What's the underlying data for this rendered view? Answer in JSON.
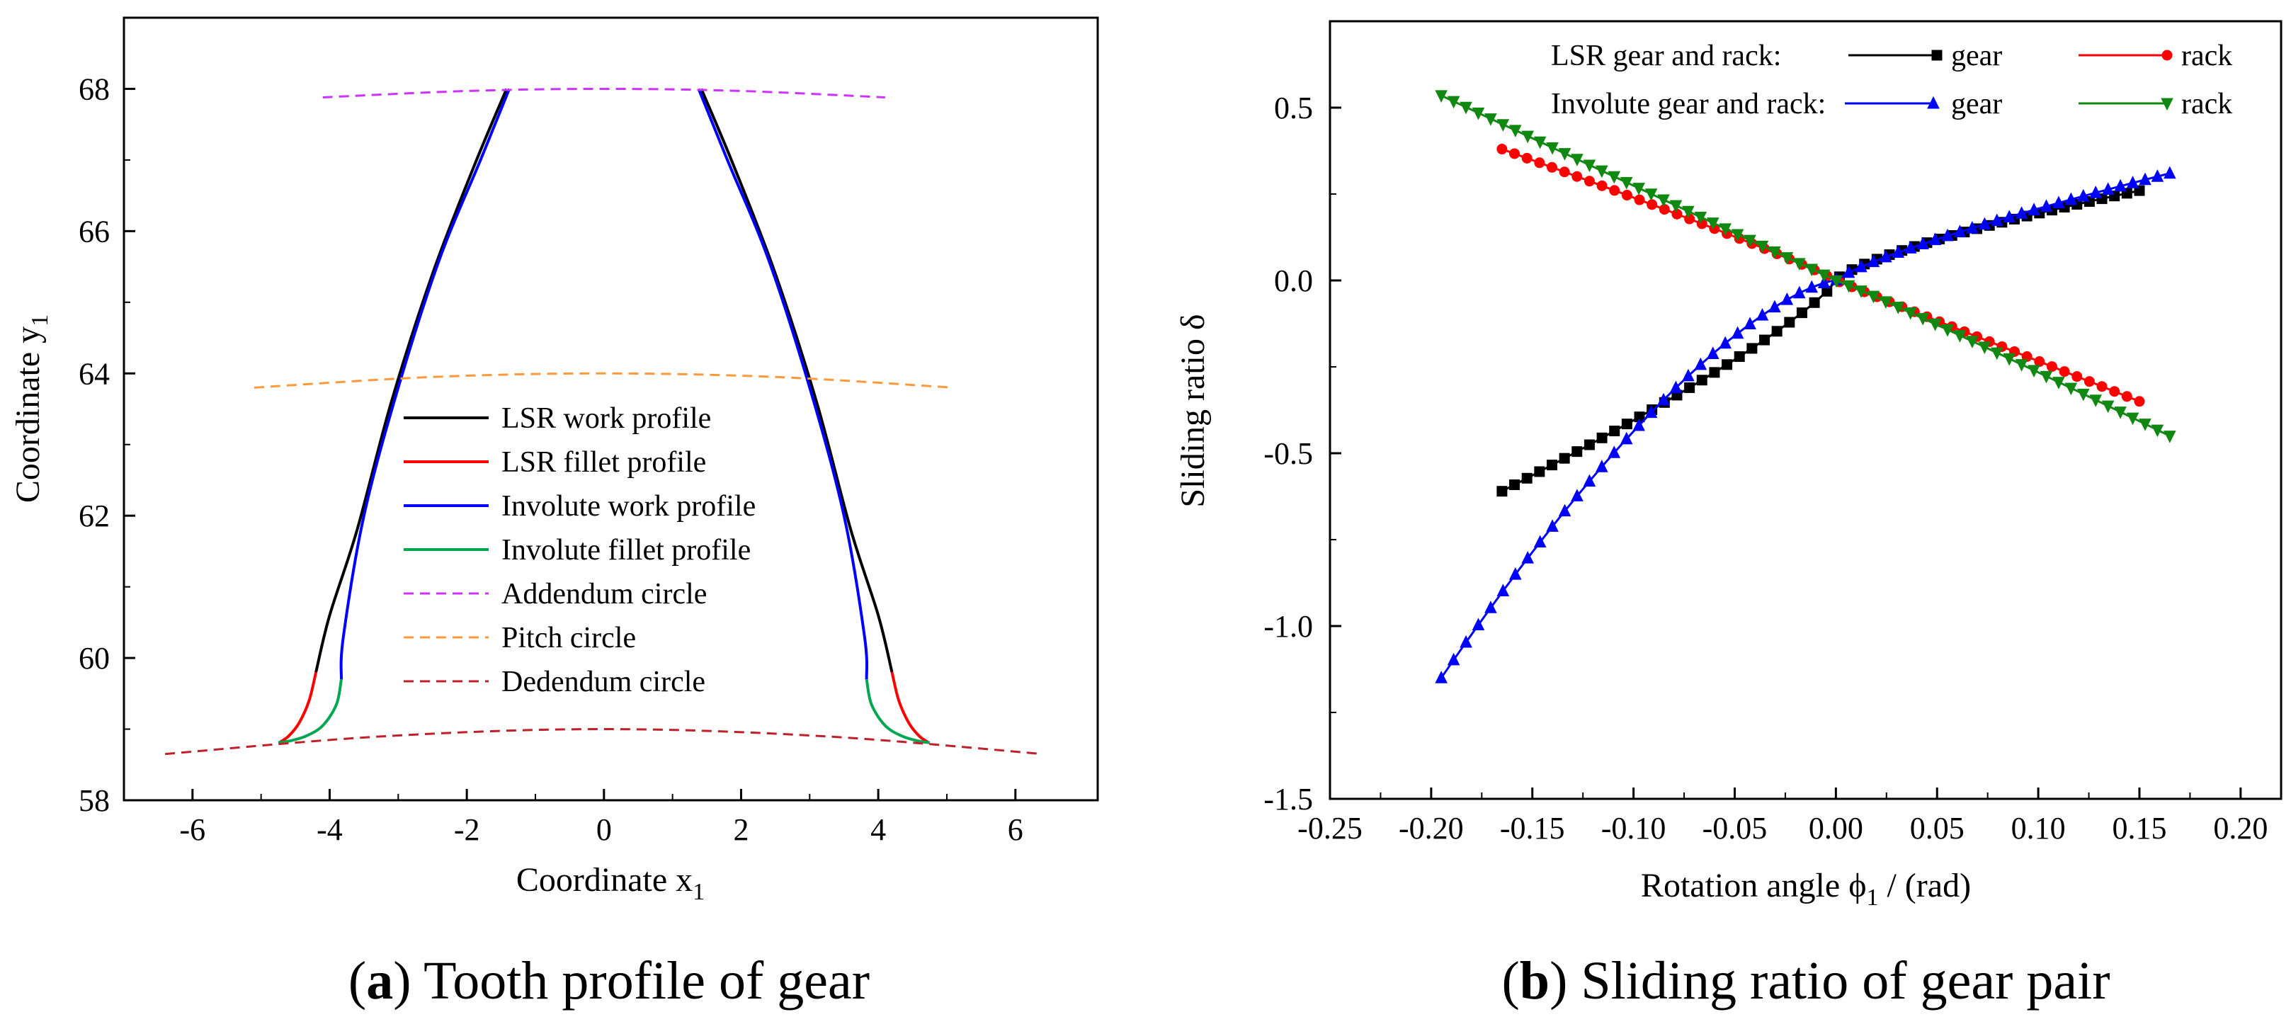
{
  "panels": [
    {
      "caption": {
        "letter": "a",
        "text": "Tooth profile of gear"
      }
    },
    {
      "caption": {
        "letter": "b",
        "text": "Sliding ratio of gear pair"
      }
    }
  ],
  "chart_data": [
    {
      "type": "line",
      "title": "",
      "xlabel": "Coordinate x",
      "xlabel_sub": "1",
      "ylabel": "Coordinate y",
      "ylabel_sub": "1",
      "xlim": [
        -7,
        7.2
      ],
      "ylim": [
        58,
        69
      ],
      "xticks": [
        -6,
        -4,
        -2,
        0,
        2,
        4,
        6
      ],
      "yticks": [
        58,
        60,
        62,
        64,
        66,
        68
      ],
      "legend": {
        "placement": "center",
        "entries": [
          {
            "name": "LSR work profile",
            "color": "#000000",
            "dash": false
          },
          {
            "name": "LSR fillet profile",
            "color": "#ff0000",
            "dash": false
          },
          {
            "name": "Involute work profile",
            "color": "#0000ff",
            "dash": false
          },
          {
            "name": "Involute fillet profile",
            "color": "#00a650",
            "dash": false
          },
          {
            "name": "Addendum circle",
            "color": "#cc33ff",
            "dash": true
          },
          {
            "name": "Pitch circle",
            "color": "#ff9a3c",
            "dash": true
          },
          {
            "name": "Dedendum circle",
            "color": "#c0202a",
            "dash": true
          }
        ]
      },
      "series": [
        {
          "name": "LSR work profile",
          "color": "#000000",
          "x": [
            -1.42,
            -1.9,
            -2.5,
            -3.1,
            -3.6,
            -4.0,
            -4.2
          ],
          "y": [
            68,
            66.9,
            65.4,
            63.6,
            61.8,
            60.6,
            59.8
          ]
        },
        {
          "name": "LSR work profile (right)",
          "color": "#000000",
          "x": [
            1.42,
            1.9,
            2.5,
            3.1,
            3.6,
            4.0,
            4.2
          ],
          "y": [
            68,
            66.9,
            65.4,
            63.6,
            61.8,
            60.6,
            59.8
          ]
        },
        {
          "name": "LSR fillet profile",
          "color": "#ff0000",
          "x": [
            -4.2,
            -4.3,
            -4.45,
            -4.6,
            -4.72
          ],
          "y": [
            59.8,
            59.4,
            59.08,
            58.9,
            58.82
          ]
        },
        {
          "name": "LSR fillet profile (right)",
          "color": "#ff0000",
          "x": [
            4.2,
            4.3,
            4.45,
            4.6,
            4.72
          ],
          "y": [
            59.8,
            59.4,
            59.08,
            58.9,
            58.82
          ]
        },
        {
          "name": "Involute work profile",
          "color": "#0000ff",
          "x": [
            -1.38,
            -1.8,
            -2.4,
            -3.0,
            -3.5,
            -3.8,
            -3.83
          ],
          "y": [
            68,
            67.0,
            65.6,
            63.8,
            62.0,
            60.3,
            59.7
          ]
        },
        {
          "name": "Involute work profile (right)",
          "color": "#0000ff",
          "x": [
            1.38,
            1.8,
            2.4,
            3.0,
            3.5,
            3.8,
            3.83
          ],
          "y": [
            68,
            67.0,
            65.6,
            63.8,
            62.0,
            60.3,
            59.7
          ]
        },
        {
          "name": "Involute fillet profile",
          "color": "#00a650",
          "x": [
            -3.83,
            -3.9,
            -4.1,
            -4.35,
            -4.6,
            -4.75
          ],
          "y": [
            59.7,
            59.35,
            59.05,
            58.9,
            58.83,
            58.81
          ]
        },
        {
          "name": "Involute fillet profile (right)",
          "color": "#00a650",
          "x": [
            3.83,
            3.9,
            4.1,
            4.35,
            4.6,
            4.75
          ],
          "y": [
            59.7,
            59.35,
            59.05,
            58.9,
            58.83,
            58.81
          ]
        },
        {
          "name": "Addendum circle",
          "color": "#cc33ff",
          "dash": true,
          "x": [
            -4.1,
            -2,
            0,
            2,
            4.1
          ],
          "y": [
            67.88,
            67.97,
            68.0,
            67.97,
            67.88
          ]
        },
        {
          "name": "Pitch circle",
          "color": "#ff9a3c",
          "dash": true,
          "x": [
            -5.1,
            -2.5,
            0,
            2.5,
            5.1
          ],
          "y": [
            63.8,
            63.95,
            64.0,
            63.95,
            63.8
          ]
        },
        {
          "name": "Dedendum circle",
          "color": "#c0202a",
          "dash": true,
          "x": [
            -6.4,
            -3.2,
            0,
            3.2,
            6.4
          ],
          "y": [
            58.65,
            58.9,
            59.0,
            58.9,
            58.65
          ]
        }
      ]
    },
    {
      "type": "line",
      "title": "",
      "xlabel": "Rotation angle ϕ",
      "xlabel_sub": "1",
      "xlabel_suffix": " / (rad)",
      "ylabel": "Sliding ratio δ",
      "xlim": [
        -0.25,
        0.22
      ],
      "ylim": [
        -1.5,
        0.75
      ],
      "xticks": [
        -0.25,
        -0.2,
        -0.15,
        -0.1,
        -0.05,
        0.0,
        0.05,
        0.1,
        0.15,
        0.2
      ],
      "xtick_labels": [
        "-0.25",
        "-0.20",
        "-0.15",
        "-0.10",
        "-0.05",
        "0.00",
        "0.05",
        "0.10",
        "0.15",
        "0.20"
      ],
      "yticks": [
        -1.5,
        -1.0,
        -0.5,
        0.0,
        0.5
      ],
      "ytick_labels": [
        "-1.5",
        "-1.0",
        "-0.5",
        "0.0",
        "0.5"
      ],
      "legend": {
        "placement": "top",
        "groups": [
          {
            "label": "LSR gear and rack:",
            "entries": [
              {
                "name": "gear",
                "color": "#000000",
                "marker": "square"
              },
              {
                "name": "rack",
                "color": "#ff0000",
                "marker": "circle"
              }
            ]
          },
          {
            "label": "Involute gear and rack:",
            "entries": [
              {
                "name": "gear",
                "color": "#0000ff",
                "marker": "triangle-up"
              },
              {
                "name": "rack",
                "color": "#118811",
                "marker": "triangle-down"
              }
            ]
          }
        ]
      },
      "series": [
        {
          "name": "LSR gear",
          "color": "#000000",
          "marker": "square",
          "x_range": [
            -0.165,
            0.15
          ],
          "formula": "lsr_gear",
          "n": 52
        },
        {
          "name": "LSR rack",
          "color": "#ff0000",
          "marker": "circle",
          "x_range": [
            -0.165,
            0.15
          ],
          "formula": "lsr_rack",
          "n": 52
        },
        {
          "name": "Involute gear",
          "color": "#0000ff",
          "marker": "triangle-up",
          "x_range": [
            -0.195,
            0.165
          ],
          "formula": "inv_gear",
          "n": 60
        },
        {
          "name": "Involute rack",
          "color": "#118811",
          "marker": "triangle-down",
          "x_range": [
            -0.195,
            0.165
          ],
          "formula": "inv_rack",
          "n": 60
        }
      ]
    }
  ]
}
